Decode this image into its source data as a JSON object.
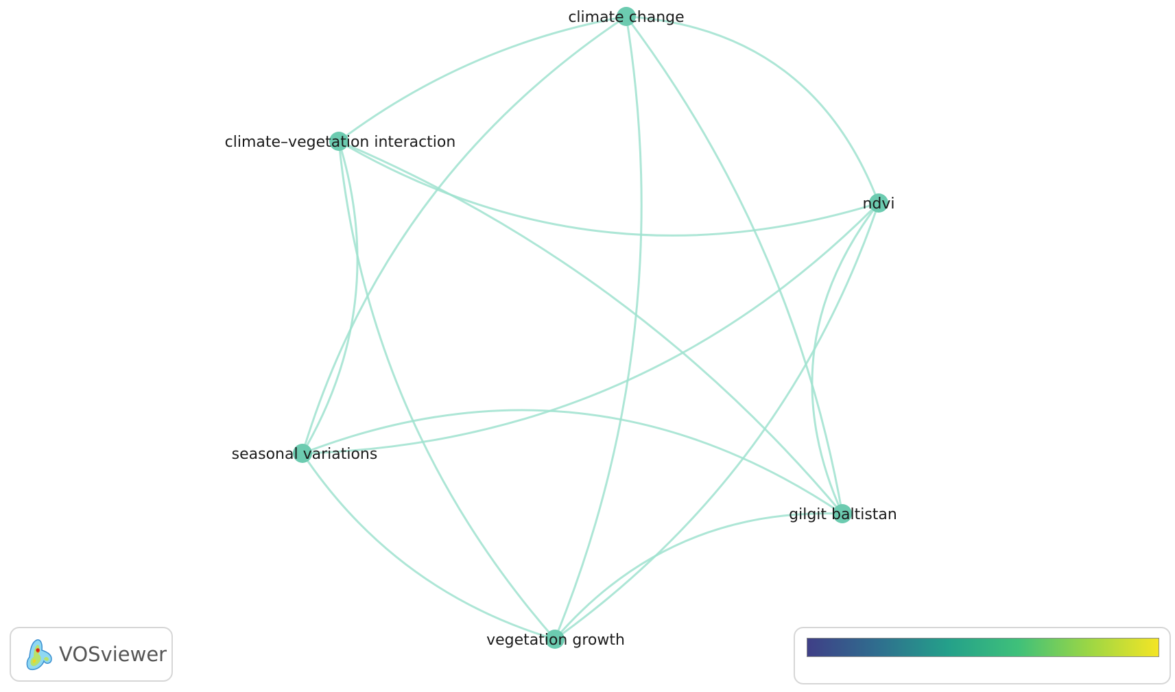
{
  "network": {
    "nodes": [
      {
        "id": "climate-change",
        "label": "climate change"
      },
      {
        "id": "climate-vegetation-interaction",
        "label": "climate–vegetation interaction"
      },
      {
        "id": "ndvi",
        "label": "ndvi"
      },
      {
        "id": "seasonal-variations",
        "label": "seasonal variations"
      },
      {
        "id": "gilgit-baltistan",
        "label": "gilgit baltistan"
      },
      {
        "id": "vegetation-growth",
        "label": "vegetation growth"
      }
    ],
    "links": [
      {
        "source": "climate-change",
        "target": "climate-vegetation-interaction"
      },
      {
        "source": "climate-change",
        "target": "ndvi"
      },
      {
        "source": "climate-change",
        "target": "seasonal-variations"
      },
      {
        "source": "climate-change",
        "target": "gilgit-baltistan"
      },
      {
        "source": "climate-change",
        "target": "vegetation-growth"
      },
      {
        "source": "climate-vegetation-interaction",
        "target": "ndvi"
      },
      {
        "source": "climate-vegetation-interaction",
        "target": "seasonal-variations"
      },
      {
        "source": "climate-vegetation-interaction",
        "target": "gilgit-baltistan"
      },
      {
        "source": "climate-vegetation-interaction",
        "target": "vegetation-growth"
      },
      {
        "source": "ndvi",
        "target": "seasonal-variations"
      },
      {
        "source": "ndvi",
        "target": "gilgit-baltistan"
      },
      {
        "source": "ndvi",
        "target": "vegetation-growth"
      },
      {
        "source": "seasonal-variations",
        "target": "gilgit-baltistan"
      },
      {
        "source": "seasonal-variations",
        "target": "vegetation-growth"
      },
      {
        "source": "gilgit-baltistan",
        "target": "vegetation-growth"
      }
    ]
  },
  "logo": {
    "text": "VOSviewer"
  },
  "colors": {
    "edge": "#9fe2cf",
    "node": "#6ccbb0",
    "gradient": [
      "#3f3f87",
      "#2f6e8e",
      "#24a08a",
      "#3fc07a",
      "#9bd645",
      "#f4e525"
    ]
  }
}
